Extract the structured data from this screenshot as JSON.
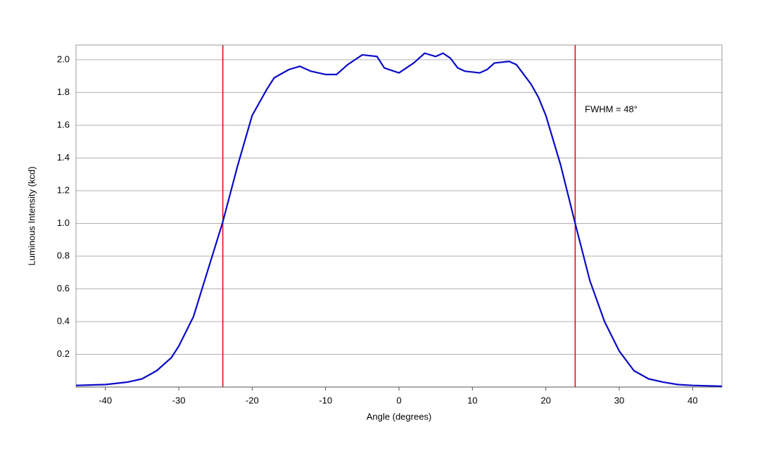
{
  "chart_data": {
    "type": "line",
    "x_label": "Angle (degrees)",
    "y_label": "Luminous Intensity (kcd)",
    "annotation": "FWHM = 48°",
    "x": [
      -44,
      -40,
      -37,
      -35,
      -33,
      -31,
      -30,
      -28,
      -26,
      -24,
      -22,
      -20,
      -18,
      -17,
      -15,
      -13.5,
      -12,
      -10,
      -8.5,
      -7,
      -5,
      -3,
      -2,
      0,
      2,
      3.5,
      5,
      6,
      7,
      8,
      9,
      11,
      12,
      13,
      15,
      16,
      18,
      19,
      20,
      22,
      24,
      26,
      28,
      30,
      32,
      34,
      36,
      38,
      40,
      44
    ],
    "series": [
      {
        "color": "#0a0ac8",
        "values": [
          0.01,
          0.015,
          0.03,
          0.05,
          0.1,
          0.18,
          0.25,
          0.43,
          0.72,
          1.01,
          1.35,
          1.66,
          1.82,
          1.89,
          1.94,
          1.96,
          1.93,
          1.91,
          1.91,
          1.97,
          2.03,
          2.02,
          1.95,
          1.92,
          1.98,
          2.04,
          2.02,
          2.04,
          2.01,
          1.95,
          1.93,
          1.92,
          1.94,
          1.98,
          1.99,
          1.97,
          1.85,
          1.77,
          1.66,
          1.36,
          1.0,
          0.65,
          0.4,
          0.22,
          0.1,
          0.05,
          0.03,
          0.015,
          0.01,
          0.005
        ]
      }
    ],
    "vlines": {
      "color": "#e01010",
      "values": [
        -24,
        24
      ]
    },
    "xlim": [
      -44,
      44
    ],
    "xticks": [
      -40,
      -30,
      -20,
      -10,
      0,
      10,
      20,
      30,
      40
    ],
    "ylim": [
      0,
      2.09
    ],
    "yticks": [
      0.2,
      0.4,
      0.6,
      0.8,
      {
        "value": 1,
        "label": "1.0"
      },
      1.2,
      1.4,
      1.6,
      1.8,
      {
        "value": 2,
        "label": "2.0"
      }
    ],
    "grid": true
  }
}
